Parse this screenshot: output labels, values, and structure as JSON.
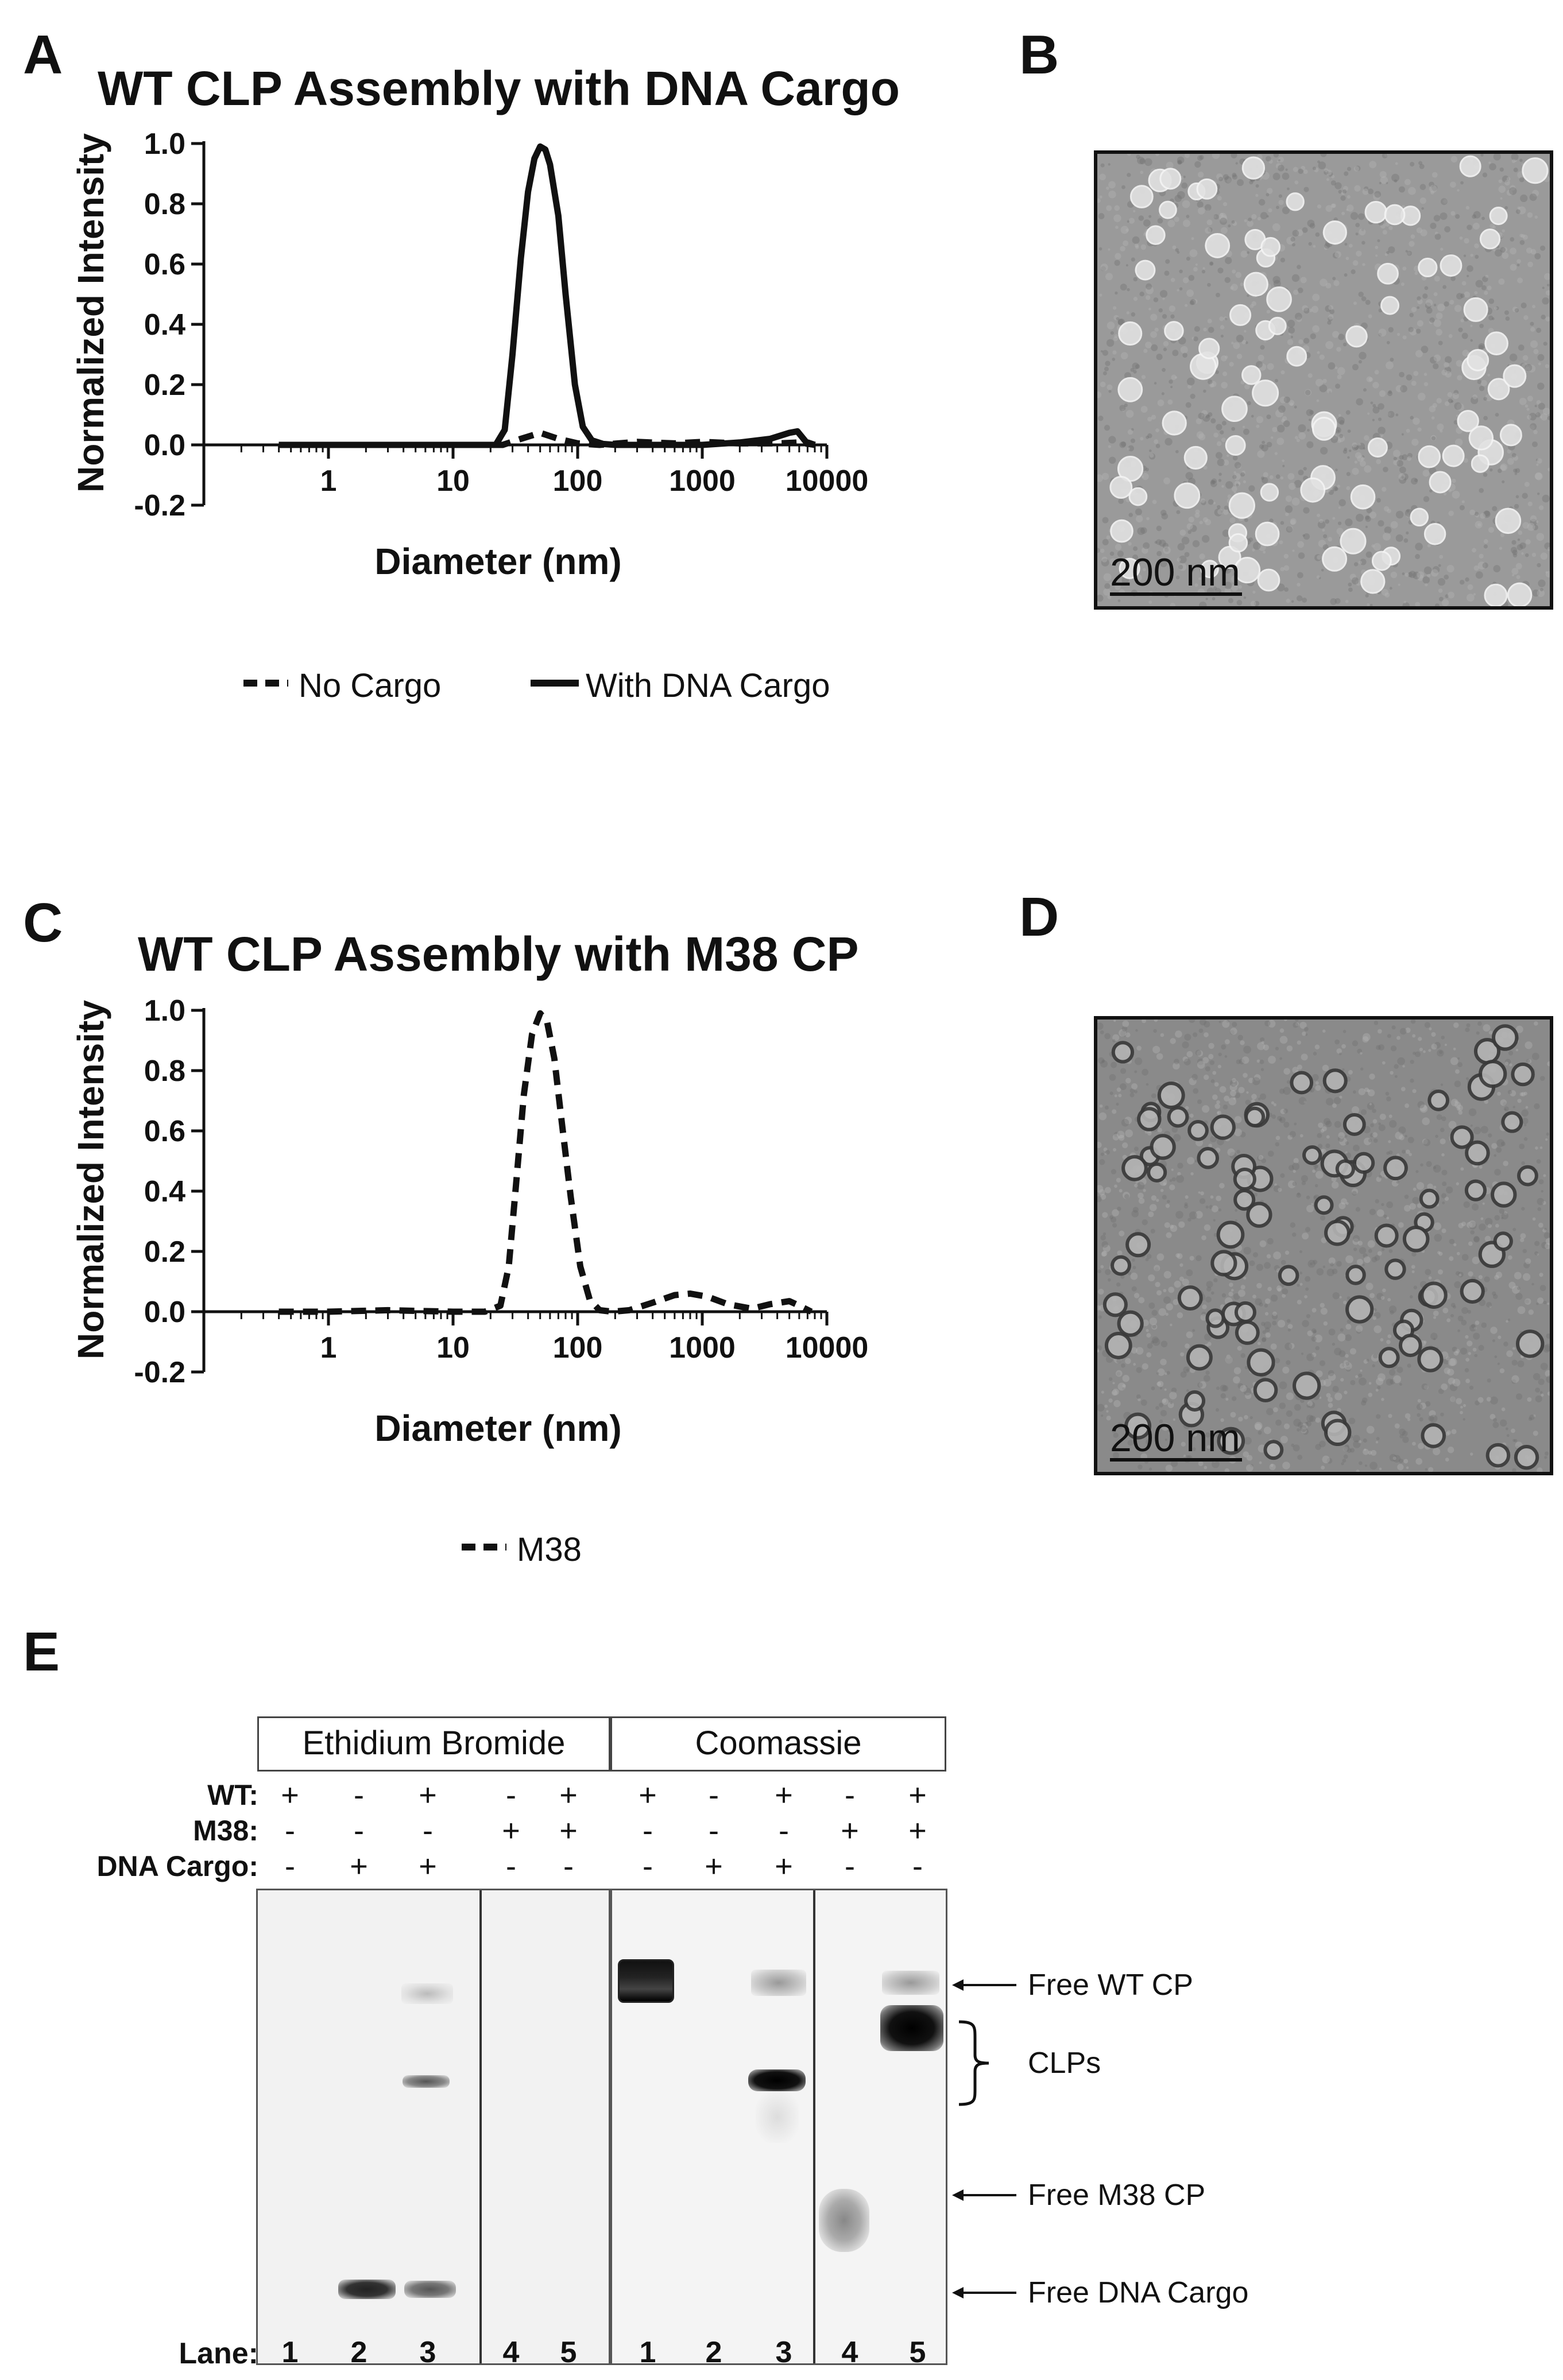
{
  "panels": {
    "A": {
      "letter": "A",
      "title": "WT CLP Assembly with DNA Cargo",
      "legend": [
        {
          "label": "No Cargo",
          "style": "dashed"
        },
        {
          "label": "With DNA Cargo",
          "style": "solid"
        }
      ]
    },
    "B": {
      "letter": "B",
      "scale_bar": "200 nm"
    },
    "C": {
      "letter": "C",
      "title": "WT CLP Assembly with M38 CP",
      "legend": [
        {
          "label": "M38",
          "style": "dashed"
        }
      ]
    },
    "D": {
      "letter": "D",
      "scale_bar": "200 nm"
    },
    "E": {
      "letter": "E",
      "headers": [
        "Ethidium Bromide",
        "Coomassie"
      ],
      "conditions": [
        {
          "label": "WT:",
          "signs": [
            "+",
            "-",
            "+",
            "-",
            "+",
            "+",
            "-",
            "+",
            "-",
            "+"
          ]
        },
        {
          "label": "M38:",
          "signs": [
            "-",
            "-",
            "-",
            "+",
            "+",
            "-",
            "-",
            "-",
            "+",
            "+"
          ]
        },
        {
          "label": "DNA Cargo:",
          "signs": [
            "-",
            "+",
            "+",
            "-",
            "-",
            "-",
            "+",
            "+",
            "-",
            "-"
          ]
        }
      ],
      "lane_label": "Lane:",
      "lanes": [
        "1",
        "2",
        "3",
        "4",
        "5",
        "1",
        "2",
        "3",
        "4",
        "5"
      ],
      "band_labels": [
        "Free WT CP",
        "CLPs",
        "Free M38 CP",
        "Free DNA Cargo"
      ]
    }
  },
  "chart_data": [
    {
      "type": "line",
      "title": "WT CLP Assembly with DNA Cargo",
      "xlabel": "Diameter (nm)",
      "ylabel": "Normalized Intensity",
      "xscale": "log",
      "xlim": [
        0.1,
        10000
      ],
      "ylim": [
        -0.2,
        1.0
      ],
      "xticks": [
        "1",
        "10",
        "100",
        "1000",
        "10000"
      ],
      "yticks": [
        "-0.2",
        "0.0",
        "0.2",
        "0.4",
        "0.6",
        "0.8",
        "1.0"
      ],
      "legend_position": "bottom",
      "series": [
        {
          "name": "No Cargo",
          "style": "dashed",
          "x": [
            0.4,
            1,
            5,
            15,
            25,
            35,
            50,
            70,
            100,
            150,
            300,
            600,
            1000,
            2000,
            4000,
            6000,
            8000
          ],
          "y": [
            0,
            0,
            0,
            0,
            0,
            0.02,
            0.04,
            0.02,
            0.005,
            0,
            0.01,
            0.005,
            0.01,
            0.005,
            0.005,
            0.008,
            0
          ]
        },
        {
          "name": "With DNA Cargo",
          "style": "solid",
          "x": [
            0.4,
            1,
            5,
            15,
            22,
            26,
            30,
            35,
            40,
            45,
            50,
            55,
            60,
            70,
            80,
            95,
            110,
            130,
            160,
            200,
            300,
            500,
            1000,
            2000,
            3500,
            5000,
            5800,
            6800,
            8000
          ],
          "y": [
            0,
            0,
            0,
            0,
            0,
            0.05,
            0.3,
            0.62,
            0.84,
            0.95,
            0.99,
            0.98,
            0.93,
            0.76,
            0.5,
            0.2,
            0.06,
            0.015,
            0.003,
            0,
            0,
            0,
            0,
            0.008,
            0.02,
            0.04,
            0.045,
            0.01,
            0
          ]
        }
      ]
    },
    {
      "type": "line",
      "title": "WT CLP Assembly with M38 CP",
      "xlabel": "Diameter (nm)",
      "ylabel": "Normalized Intensity",
      "xscale": "log",
      "xlim": [
        0.1,
        10000
      ],
      "ylim": [
        -0.2,
        1.0
      ],
      "xticks": [
        "1",
        "10",
        "100",
        "1000",
        "10000"
      ],
      "yticks": [
        "-0.2",
        "0.0",
        "0.2",
        "0.4",
        "0.6",
        "0.8",
        "1.0"
      ],
      "legend_position": "bottom",
      "series": [
        {
          "name": "M38",
          "style": "dashed",
          "x": [
            0.4,
            1,
            3,
            10,
            18,
            24,
            28,
            32,
            37,
            43,
            50,
            57,
            65,
            75,
            88,
            105,
            125,
            150,
            190,
            260,
            400,
            600,
            800,
            1100,
            1600,
            2500,
            3500,
            5000,
            6000,
            7500
          ],
          "y": [
            0,
            0,
            0.005,
            0,
            0,
            0.02,
            0.15,
            0.42,
            0.72,
            0.92,
            0.99,
            0.96,
            0.84,
            0.62,
            0.38,
            0.15,
            0.04,
            0.005,
            0,
            0.005,
            0.03,
            0.055,
            0.06,
            0.05,
            0.025,
            0.01,
            0.025,
            0.035,
            0.02,
            0
          ]
        }
      ]
    }
  ]
}
